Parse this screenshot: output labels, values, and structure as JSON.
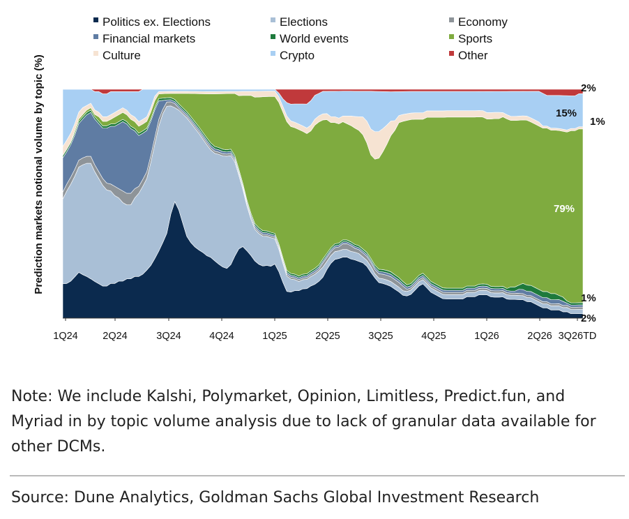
{
  "chart_data": {
    "type": "area",
    "stacked": true,
    "normalized": true,
    "ylabel": "Prediction markets notional volume by topic (%)",
    "ylim": [
      0,
      100
    ],
    "tick_labels": [
      "1Q24",
      "2Q24",
      "3Q24",
      "4Q24",
      "1Q25",
      "2Q25",
      "3Q25",
      "4Q25",
      "1Q26",
      "2Q26",
      "3Q26TD"
    ],
    "legend_position": "top",
    "grid": false,
    "x": [
      0,
      1,
      2,
      3,
      4,
      5,
      6,
      7,
      8,
      9,
      10,
      11,
      12,
      13,
      14,
      15,
      16,
      17,
      18,
      19,
      20,
      21,
      22,
      23,
      24,
      25,
      26,
      27,
      28,
      29,
      30,
      31,
      32,
      33,
      34,
      35,
      36,
      37,
      38,
      39,
      40,
      41,
      42,
      43,
      44,
      45,
      46,
      47,
      48,
      49,
      50,
      51,
      52,
      53,
      54,
      55,
      56,
      57,
      58,
      59,
      60,
      61,
      62,
      63,
      64,
      65,
      66,
      67,
      68,
      69,
      70,
      71,
      72,
      73,
      74,
      75,
      76,
      77,
      78,
      79,
      80,
      81,
      82,
      83,
      84,
      85,
      86,
      87,
      88,
      89,
      90,
      91,
      92,
      93,
      94,
      95,
      96,
      97,
      98,
      99,
      100,
      101,
      102,
      103,
      104,
      105,
      106,
      107,
      108,
      109,
      110,
      111,
      112,
      113,
      114,
      115,
      116,
      117,
      118,
      119,
      120,
      121,
      122,
      123,
      124,
      125,
      126,
      127,
      128,
      129,
      130
    ],
    "x_note": "weekly points from 1Q24 through 3Q26TD",
    "series": [
      {
        "name": "Politics ex. Elections",
        "color": "#0b2a4e",
        "values": [
          15,
          15,
          16,
          18,
          20,
          19,
          18,
          17,
          16,
          15,
          14,
          14,
          15,
          15,
          16,
          16,
          17,
          17,
          18,
          18,
          19,
          21,
          23,
          26,
          29,
          34,
          40,
          50,
          57,
          52,
          46,
          40,
          36,
          33,
          31,
          29,
          27,
          26,
          25,
          24,
          23,
          23,
          25,
          29,
          33,
          35,
          33,
          31,
          29,
          28,
          28,
          29,
          29,
          30,
          25,
          19,
          14,
          14,
          15,
          15,
          16,
          16,
          17,
          17,
          18,
          20,
          24,
          28,
          30,
          31,
          32,
          32,
          31,
          30,
          29,
          28,
          26,
          23,
          19,
          16,
          15,
          14,
          13,
          12,
          11,
          10,
          10,
          11,
          13,
          15,
          16,
          14,
          12,
          11,
          10,
          9,
          9,
          9,
          9,
          9,
          9,
          10,
          10,
          10,
          11,
          11,
          11,
          10,
          10,
          10,
          10,
          9,
          9,
          9,
          9,
          9,
          8,
          8,
          7,
          6,
          5,
          5,
          4,
          4,
          4,
          3,
          3,
          2,
          2,
          2,
          2
        ]
      },
      {
        "name": "Elections",
        "color": "#a9bfd6",
        "values": [
          37,
          40,
          42,
          44,
          46,
          48,
          49,
          50,
          48,
          46,
          44,
          42,
          40,
          38,
          36,
          34,
          32,
          32,
          34,
          36,
          38,
          40,
          45,
          50,
          54,
          58,
          60,
          52,
          46,
          48,
          53,
          58,
          57,
          55,
          53,
          50,
          48,
          46,
          47,
          49,
          50,
          52,
          51,
          44,
          35,
          28,
          22,
          18,
          16,
          16,
          16,
          16,
          16,
          14,
          12,
          10,
          8,
          7,
          6,
          5,
          5,
          5,
          5,
          5,
          5,
          5,
          4,
          4,
          4,
          4,
          4,
          4,
          4,
          4,
          4,
          3,
          3,
          3,
          2,
          2,
          2,
          2,
          2,
          2,
          2,
          2,
          2,
          2,
          2,
          2,
          2,
          2,
          2,
          2,
          2,
          2,
          2,
          2,
          2,
          2,
          2,
          2,
          2,
          2,
          2,
          2,
          2,
          2,
          2,
          2,
          2,
          2,
          2,
          2,
          2,
          2,
          2,
          2,
          2,
          2,
          2,
          2,
          2,
          2,
          2,
          2,
          2,
          2,
          2,
          2,
          2
        ]
      },
      {
        "name": "Economy",
        "color": "#8e9499",
        "values": [
          3,
          3,
          3,
          3,
          3,
          3,
          3,
          3,
          3,
          3,
          3,
          3,
          3,
          4,
          4,
          5,
          5,
          5,
          4,
          3,
          3,
          3,
          3,
          3,
          3,
          2,
          2,
          2,
          2,
          1,
          1,
          1,
          1,
          1,
          1,
          1,
          1,
          1,
          1,
          1,
          1,
          1,
          1,
          1,
          1,
          1,
          1,
          1,
          1,
          1,
          1,
          1,
          1,
          1,
          1,
          1,
          1,
          1,
          1,
          1,
          1,
          1,
          1,
          1,
          1,
          2,
          2,
          2,
          2,
          2,
          3,
          3,
          3,
          2,
          2,
          2,
          2,
          2,
          2,
          2,
          2,
          2,
          2,
          2,
          2,
          2,
          1,
          1,
          1,
          1,
          1,
          1,
          1,
          1,
          1,
          1,
          1,
          1,
          1,
          1,
          1,
          1,
          1,
          1,
          1,
          1,
          1,
          1,
          1,
          1,
          1,
          1,
          1,
          1,
          1,
          1,
          1,
          1,
          1,
          1,
          1,
          1,
          1,
          1,
          1,
          1,
          1,
          1,
          1,
          1,
          1
        ]
      },
      {
        "name": "Financial markets",
        "color": "#5f7ca3",
        "values": [
          15,
          14,
          14,
          15,
          16,
          17,
          18,
          19,
          20,
          21,
          22,
          24,
          25,
          26,
          28,
          30,
          30,
          28,
          25,
          22,
          20,
          18,
          15,
          12,
          8,
          4,
          1,
          1,
          1,
          1,
          1,
          1,
          1,
          1,
          1,
          1,
          1,
          1,
          1,
          1,
          1,
          1,
          1,
          1,
          1,
          1,
          1,
          1,
          1,
          1,
          1,
          1,
          1,
          1,
          1,
          1,
          1,
          1,
          1,
          1,
          1,
          1,
          1,
          1,
          1,
          1,
          1,
          1,
          1,
          1,
          1,
          1,
          1,
          1,
          1,
          1,
          1,
          1,
          1,
          1,
          1,
          1,
          1,
          1,
          1,
          1,
          1,
          1,
          1,
          1,
          1,
          1,
          1,
          1,
          1,
          1,
          1,
          1,
          1,
          1,
          1,
          1,
          1,
          1,
          1,
          1,
          1,
          1,
          1,
          1,
          1,
          1,
          1,
          1,
          2,
          2,
          2,
          2,
          2,
          2,
          2,
          2,
          2,
          2,
          2,
          2,
          1,
          1,
          1,
          1,
          1
        ]
      },
      {
        "name": "World events",
        "color": "#1e7a3c",
        "values": [
          1,
          1,
          1,
          1,
          1,
          1,
          1,
          1,
          1,
          1,
          1,
          1,
          1,
          1,
          1,
          1,
          1,
          1,
          1,
          1,
          1,
          1,
          1,
          1,
          1,
          1,
          1,
          1,
          1,
          1,
          1,
          1,
          1,
          1,
          1,
          1,
          1,
          1,
          1,
          1,
          1,
          1,
          1,
          1,
          1,
          1,
          1,
          1,
          1,
          1,
          1,
          1,
          1,
          1,
          1,
          1,
          1,
          1,
          1,
          1,
          1,
          1,
          1,
          1,
          1,
          1,
          1,
          1,
          1,
          1,
          1,
          1,
          1,
          1,
          1,
          1,
          1,
          1,
          1,
          1,
          1,
          1,
          1,
          1,
          1,
          1,
          1,
          1,
          1,
          1,
          1,
          1,
          1,
          1,
          1,
          1,
          1,
          1,
          1,
          1,
          1,
          1,
          1,
          1,
          1,
          1,
          1,
          1,
          1,
          1,
          1,
          1,
          2,
          2,
          2,
          3,
          3,
          3,
          3,
          3,
          3,
          3,
          3,
          3,
          2,
          2,
          1,
          1,
          1,
          1,
          1
        ]
      },
      {
        "name": "Sports",
        "color": "#7fab3f",
        "values": [
          0,
          0,
          0,
          1,
          1,
          1,
          1,
          1,
          1,
          2,
          2,
          2,
          2,
          3,
          3,
          3,
          3,
          3,
          3,
          3,
          3,
          3,
          3,
          3,
          2,
          2,
          2,
          2,
          3,
          5,
          7,
          9,
          11,
          13,
          15,
          17,
          19,
          21,
          23,
          24,
          25,
          26,
          26,
          29,
          35,
          43,
          51,
          58,
          64,
          68,
          72,
          74,
          76,
          76,
          76,
          77,
          78,
          79,
          80,
          80,
          78,
          76,
          74,
          72,
          70,
          68,
          66,
          64,
          62,
          62,
          62,
          61,
          61,
          60,
          59,
          58,
          55,
          52,
          50,
          50,
          51,
          53,
          56,
          60,
          65,
          70,
          74,
          76,
          75,
          73,
          72,
          74,
          76,
          77,
          78,
          79,
          80,
          80,
          80,
          80,
          80,
          79,
          79,
          79,
          79,
          78,
          78,
          79,
          80,
          80,
          80,
          80,
          80,
          80,
          80,
          80,
          80,
          80,
          80,
          80,
          80,
          80,
          80,
          80,
          80,
          79,
          79,
          79,
          79,
          79,
          79
        ]
      },
      {
        "name": "Culture",
        "color": "#f6e3d2",
        "values": [
          4,
          4,
          4,
          3,
          3,
          3,
          2,
          2,
          2,
          2,
          2,
          2,
          2,
          2,
          2,
          2,
          2,
          2,
          2,
          2,
          2,
          2,
          2,
          2,
          1,
          1,
          1,
          1,
          1,
          1,
          1,
          1,
          1,
          1,
          1,
          1,
          1,
          1,
          1,
          1,
          1,
          1,
          1,
          1,
          2,
          2,
          2,
          2,
          3,
          3,
          3,
          3,
          3,
          3,
          3,
          3,
          3,
          3,
          3,
          3,
          3,
          3,
          3,
          3,
          3,
          3,
          3,
          3,
          3,
          3,
          3,
          4,
          5,
          6,
          7,
          9,
          11,
          13,
          13,
          12,
          10,
          8,
          6,
          4,
          3,
          3,
          3,
          3,
          3,
          3,
          3,
          3,
          3,
          3,
          3,
          3,
          3,
          3,
          3,
          3,
          3,
          3,
          3,
          3,
          3,
          3,
          3,
          3,
          3,
          3,
          2,
          2,
          2,
          2,
          2,
          2,
          2,
          2,
          2,
          2,
          1,
          1,
          1,
          1,
          1,
          1,
          1,
          1,
          1,
          1,
          1
        ]
      },
      {
        "name": "Crypto",
        "color": "#a8cff3",
        "values": [
          25,
          22,
          19,
          15,
          10,
          8,
          7,
          6,
          8,
          9,
          10,
          10,
          10,
          9,
          8,
          7,
          8,
          10,
          11,
          13,
          13,
          12,
          8,
          3,
          1,
          1,
          1,
          1,
          1,
          1,
          1,
          1,
          1,
          1,
          1,
          1,
          1,
          1,
          1,
          1,
          1,
          1,
          1,
          1,
          1,
          1,
          1,
          1,
          1,
          1,
          1,
          1,
          1,
          1,
          2,
          4,
          7,
          9,
          10,
          11,
          12,
          13,
          13,
          12,
          11,
          11,
          11,
          13,
          13,
          14,
          13,
          13,
          13,
          13,
          13,
          13,
          15,
          19,
          19,
          18,
          16,
          14,
          12,
          12,
          10,
          10,
          10,
          10,
          10,
          10,
          10,
          9,
          9,
          9,
          9,
          9,
          9,
          9,
          9,
          9,
          9,
          9,
          9,
          9,
          9,
          9,
          10,
          10,
          10,
          10,
          10,
          11,
          12,
          12,
          12,
          12,
          12,
          13,
          14,
          15,
          16,
          15,
          16,
          16,
          16,
          16,
          16,
          15,
          15,
          15,
          15
        ]
      },
      {
        "name": "Other",
        "color": "#c0393b",
        "values": [
          0,
          0,
          0,
          0,
          0,
          0,
          0,
          0,
          1,
          1,
          2,
          2,
          1,
          1,
          1,
          1,
          1,
          1,
          1,
          1,
          0,
          0,
          0,
          0,
          0,
          0,
          0,
          0,
          0,
          0,
          0,
          0,
          0,
          0,
          0,
          0,
          0,
          0,
          0,
          0,
          0,
          0,
          0,
          0,
          0,
          0,
          0,
          0,
          0,
          0,
          0,
          0,
          0,
          0,
          2,
          5,
          7,
          8,
          8,
          8,
          8,
          8,
          6,
          3,
          2,
          1,
          1,
          1,
          1,
          1,
          1,
          1,
          1,
          1,
          1,
          1,
          1,
          1,
          1,
          1,
          1,
          1,
          1,
          1,
          1,
          1,
          1,
          1,
          1,
          1,
          1,
          1,
          1,
          1,
          1,
          1,
          1,
          1,
          1,
          1,
          1,
          1,
          1,
          1,
          1,
          1,
          1,
          1,
          1,
          1,
          1,
          1,
          1,
          1,
          1,
          1,
          1,
          1,
          1,
          1,
          2,
          3,
          3,
          3,
          3,
          3,
          3,
          3,
          3,
          2,
          2
        ]
      }
    ],
    "annotations": [
      {
        "text": "2%",
        "color": "#111111"
      },
      {
        "text": "15%",
        "color": "#111111"
      },
      {
        "text": "1%",
        "color": "#111111"
      },
      {
        "text": "79%",
        "color": "#ffffff"
      },
      {
        "text": "1%",
        "color": "#111111"
      },
      {
        "text": "2%",
        "color": "#111111"
      }
    ]
  },
  "note": "Note: We include Kalshi, Polymarket, Opinion, Limitless, Predict.fun, and Myriad in by topic volume analysis due to lack of granular data available for other DCMs.",
  "source": "Source: Dune Analytics, Goldman Sachs Global Investment Research"
}
